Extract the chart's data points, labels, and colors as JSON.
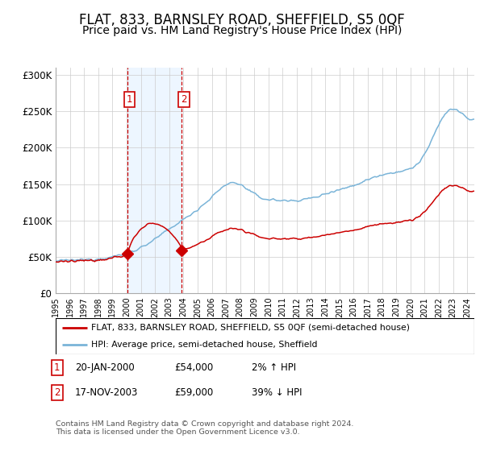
{
  "title": "FLAT, 833, BARNSLEY ROAD, SHEFFIELD, S5 0QF",
  "subtitle": "Price paid vs. HM Land Registry's House Price Index (HPI)",
  "title_fontsize": 12,
  "subtitle_fontsize": 10,
  "ylim": [
    0,
    310000
  ],
  "yticks": [
    0,
    50000,
    100000,
    150000,
    200000,
    250000,
    300000
  ],
  "ytick_labels": [
    "£0",
    "£50K",
    "£100K",
    "£150K",
    "£200K",
    "£250K",
    "£300K"
  ],
  "hpi_color": "#7ab4d8",
  "price_color": "#cc0000",
  "sale1_date_x": 2000.05,
  "sale1_price": 54000,
  "sale2_date_x": 2003.89,
  "sale2_price": 59000,
  "sale1_label": "1",
  "sale2_label": "2",
  "legend_label_price": "FLAT, 833, BARNSLEY ROAD, SHEFFIELD, S5 0QF (semi-detached house)",
  "legend_label_hpi": "HPI: Average price, semi-detached house, Sheffield",
  "table_rows": [
    {
      "num": "1",
      "date": "20-JAN-2000",
      "price": "£54,000",
      "hpi": "2% ↑ HPI"
    },
    {
      "num": "2",
      "date": "17-NOV-2003",
      "price": "£59,000",
      "hpi": "39% ↓ HPI"
    }
  ],
  "footnote": "Contains HM Land Registry data © Crown copyright and database right 2024.\nThis data is licensed under the Open Government Licence v3.0.",
  "background_color": "#ffffff",
  "grid_color": "#cccccc",
  "shade_color": "#ddeeff",
  "xlim_left": 1995,
  "xlim_right": 2024.5
}
